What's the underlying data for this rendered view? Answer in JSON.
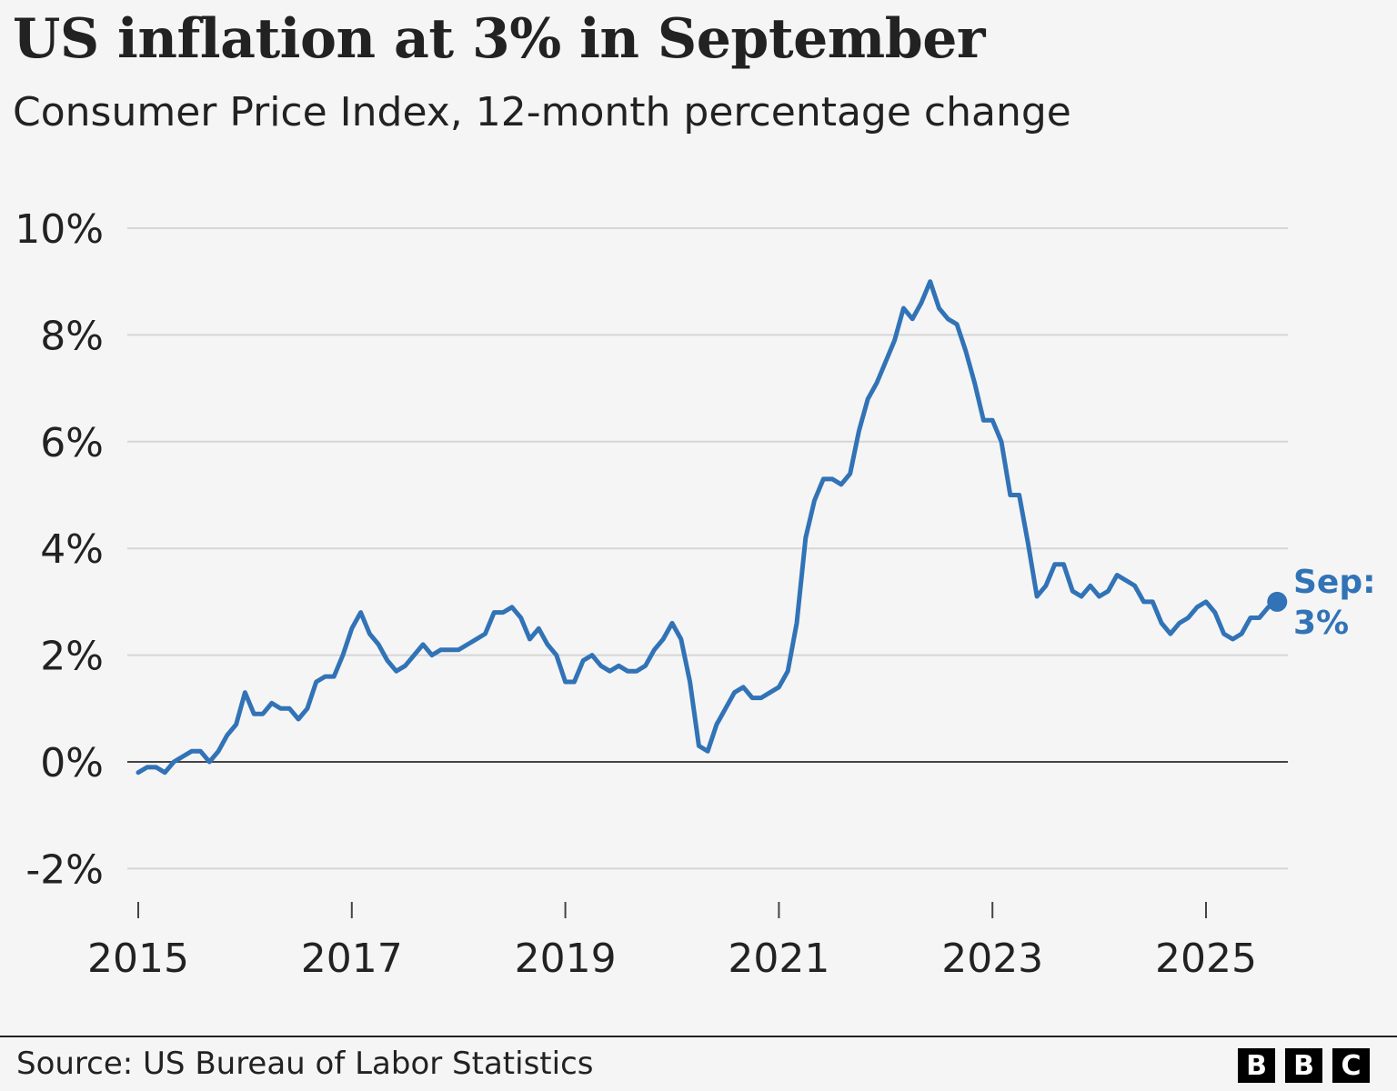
{
  "header": {
    "title": "US inflation at 3% in September",
    "subtitle": "Consumer Price Index, 12-month percentage change"
  },
  "footer": {
    "source": "Source: US Bureau of Labor Statistics",
    "logo_text": "BBC"
  },
  "chart_data": {
    "type": "line",
    "title": "US inflation at 3% in September",
    "subtitle": "Consumer Price Index, 12-month percentage change",
    "xlabel": "",
    "ylabel": "",
    "ylim": [
      -2,
      10
    ],
    "xlim": [
      "2015-01",
      "2025-09"
    ],
    "grid": true,
    "y_ticks": [
      -2,
      0,
      2,
      4,
      6,
      8,
      10
    ],
    "y_tick_labels": [
      "-2%",
      "0%",
      "2%",
      "4%",
      "6%",
      "8%",
      "10%"
    ],
    "x_ticks": [
      "2015",
      "2017",
      "2019",
      "2021",
      "2023",
      "2025"
    ],
    "line_color": "#3173b6",
    "annotation": {
      "line1": "Sep:",
      "line2": "3%",
      "x": "2025-09",
      "y": 3.0
    },
    "series": [
      {
        "start": "2015-01",
        "frequency": "monthly",
        "values": [
          -0.2,
          -0.1,
          -0.1,
          -0.2,
          0.0,
          0.1,
          0.2,
          0.2,
          0.0,
          0.2,
          0.5,
          0.7,
          1.3,
          0.9,
          0.9,
          1.1,
          1.0,
          1.0,
          0.8,
          1.0,
          1.5,
          1.6,
          1.6,
          2.0,
          2.5,
          2.8,
          2.4,
          2.2,
          1.9,
          1.7,
          1.8,
          2.0,
          2.2,
          2.0,
          2.1,
          2.1,
          2.1,
          2.2,
          2.3,
          2.4,
          2.8,
          2.8,
          2.9,
          2.7,
          2.3,
          2.5,
          2.2,
          2.0,
          1.5,
          1.5,
          1.9,
          2.0,
          1.8,
          1.7,
          1.8,
          1.7,
          1.7,
          1.8,
          2.1,
          2.3,
          2.6,
          2.3,
          1.5,
          0.3,
          0.2,
          0.7,
          1.0,
          1.3,
          1.4,
          1.2,
          1.2,
          1.3,
          1.4,
          1.7,
          2.6,
          4.2,
          4.9,
          5.3,
          5.3,
          5.2,
          5.4,
          6.2,
          6.8,
          7.1,
          7.5,
          7.9,
          8.5,
          8.3,
          8.6,
          9.0,
          8.5,
          8.3,
          8.2,
          7.7,
          7.1,
          6.4,
          6.4,
          6.0,
          5.0,
          5.0,
          4.1,
          3.1,
          3.3,
          3.7,
          3.7,
          3.2,
          3.1,
          3.3,
          3.1,
          3.2,
          3.5,
          3.4,
          3.3,
          3.0,
          3.0,
          2.6,
          2.4,
          2.6,
          2.7,
          2.9,
          3.0,
          2.8,
          2.4,
          2.3,
          2.4,
          2.7,
          2.7,
          2.9,
          3.0
        ]
      }
    ]
  }
}
